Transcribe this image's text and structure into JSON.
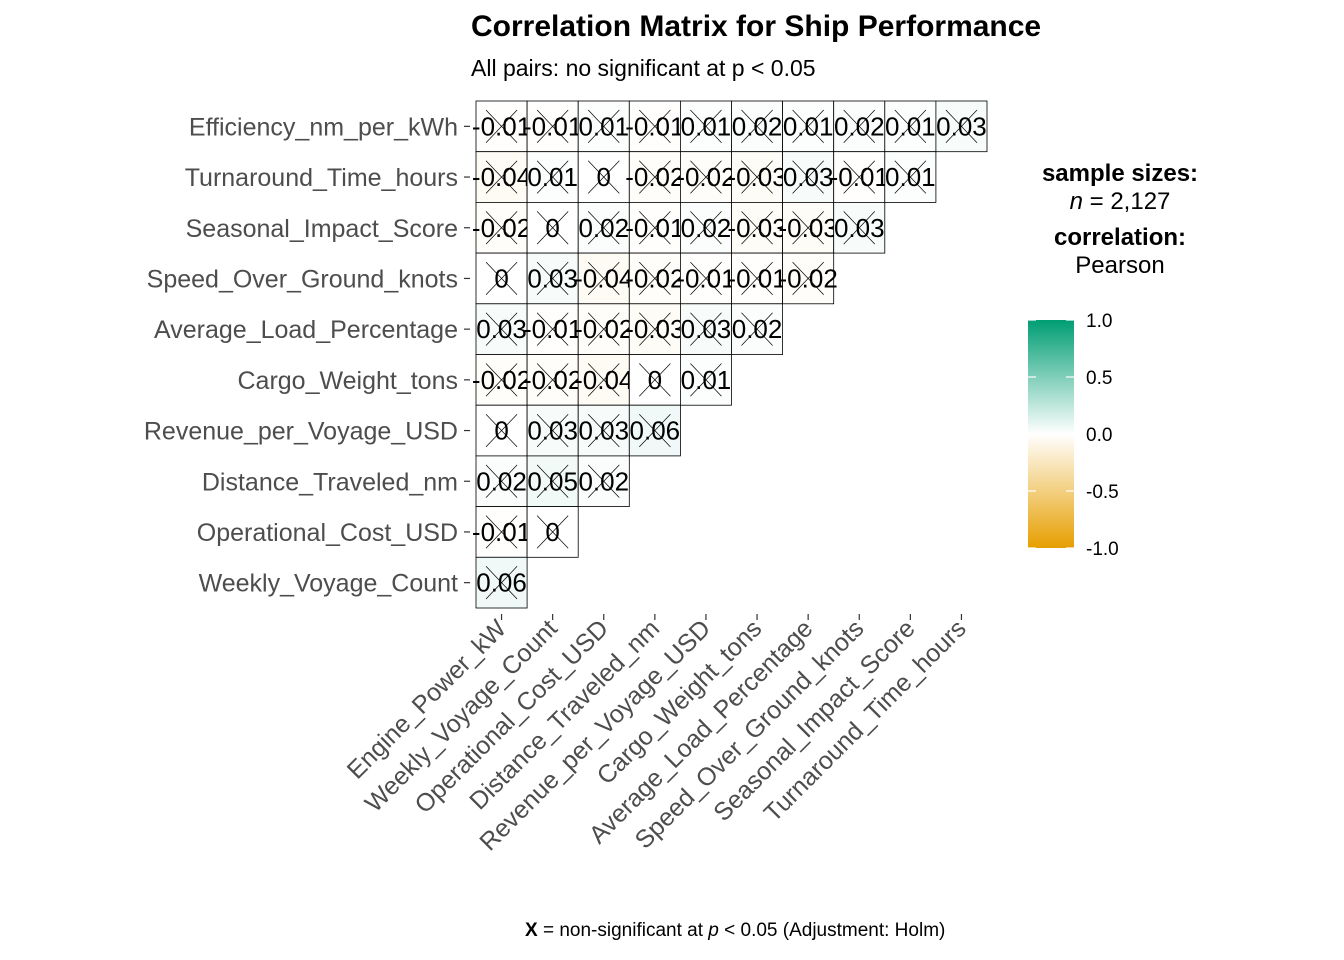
{
  "title": "Correlation Matrix for Ship Performance",
  "subtitle": "All pairs: no significant at p < 0.05",
  "legend": {
    "sample_heading": "sample sizes:",
    "n_label": "n",
    "n_value": "2,127",
    "corr_heading": "correlation:",
    "corr_method": "Pearson",
    "ticks": [
      "1.0",
      "0.5",
      "0.0",
      "-0.5",
      "-1.0"
    ],
    "low_color": "#E69F00",
    "mid_color": "#FFFFFF",
    "high_color": "#009E73"
  },
  "caption": {
    "symbol": "X",
    "text_before": " = non-significant at ",
    "p": "p",
    "text_after": " < 0.05 (Adjustment: Holm)"
  },
  "chart_data": {
    "type": "heatmap",
    "title": "Correlation Matrix for Ship Performance",
    "x_categories": [
      "Engine_Power_kW",
      "Weekly_Voyage_Count",
      "Operational_Cost_USD",
      "Distance_Traveled_nm",
      "Revenue_per_Voyage_USD",
      "Cargo_Weight_tons",
      "Average_Load_Percentage",
      "Speed_Over_Ground_knots",
      "Seasonal_Impact_Score",
      "Turnaround_Time_hours"
    ],
    "y_categories": [
      "Efficiency_nm_per_kWh",
      "Turnaround_Time_hours",
      "Seasonal_Impact_Score",
      "Speed_Over_Ground_knots",
      "Average_Load_Percentage",
      "Cargo_Weight_tons",
      "Revenue_per_Voyage_USD",
      "Distance_Traveled_nm",
      "Operational_Cost_USD",
      "Weekly_Voyage_Count"
    ],
    "rows": [
      {
        "values": [
          -0.01,
          -0.01,
          0.01,
          -0.01,
          0.01,
          0.02,
          0.01,
          0.02,
          0.01,
          0.03
        ],
        "labels": [
          "-0.01",
          "-0.01",
          "0.01",
          "-0.01",
          "0.01",
          "0.02",
          "0.01",
          "0.02",
          "0.01",
          "0.03"
        ]
      },
      {
        "values": [
          -0.04,
          0.01,
          0,
          -0.02,
          -0.02,
          -0.03,
          0.03,
          -0.01,
          0.01
        ],
        "labels": [
          "-0.04",
          "0.01",
          "0",
          "-0.02",
          "-0.02",
          "-0.03",
          "0.03",
          "-0.01",
          "0.01"
        ]
      },
      {
        "values": [
          -0.02,
          0,
          0.02,
          -0.01,
          0.02,
          -0.03,
          -0.03,
          0.03
        ],
        "labels": [
          "-0.02",
          "0",
          "0.02",
          "-0.01",
          "0.02",
          "-0.03",
          "-0.03",
          "0.03"
        ]
      },
      {
        "values": [
          0,
          0.03,
          -0.04,
          -0.02,
          -0.01,
          -0.01,
          -0.02
        ],
        "labels": [
          "0",
          "0.03",
          "-0.04",
          "-0.02",
          "-0.01",
          "-0.01",
          "-0.02"
        ]
      },
      {
        "values": [
          0.03,
          -0.01,
          -0.02,
          -0.03,
          0.03,
          0.02
        ],
        "labels": [
          "0.03",
          "-0.01",
          "-0.02",
          "-0.03",
          "0.03",
          "0.02"
        ]
      },
      {
        "values": [
          -0.02,
          -0.02,
          -0.04,
          0,
          0.01
        ],
        "labels": [
          "-0.02",
          "-0.02",
          "-0.04",
          "0",
          "0.01"
        ]
      },
      {
        "values": [
          0,
          0.03,
          0.03,
          0.06
        ],
        "labels": [
          "0",
          "0.03",
          "0.03",
          "0.06"
        ]
      },
      {
        "values": [
          0.02,
          0.05,
          0.02
        ],
        "labels": [
          "0.02",
          "0.05",
          "0.02"
        ]
      },
      {
        "values": [
          -0.01,
          0
        ],
        "labels": [
          "-0.01",
          "0"
        ]
      },
      {
        "values": [
          0.06
        ],
        "labels": [
          "0.06"
        ]
      }
    ],
    "all_nonsignificant": true,
    "scale_limits": [
      -1,
      1
    ]
  }
}
